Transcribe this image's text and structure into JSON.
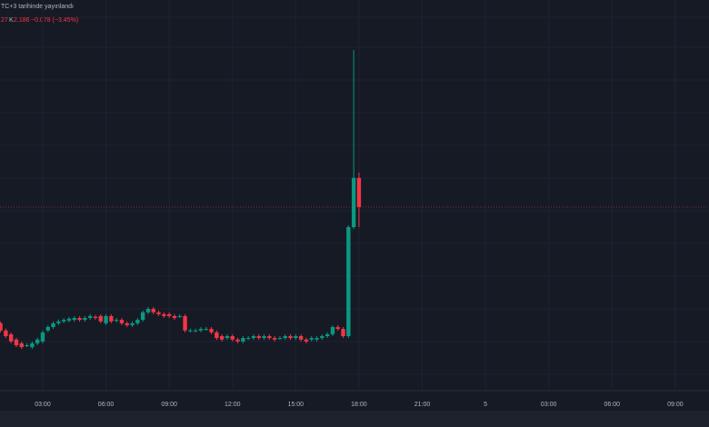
{
  "header": {
    "published": "TC+3 tarihinde yayınlandı",
    "ohlc_prefix": "27",
    "close_label": "K",
    "close_value": "2.186",
    "change": "−0.078 (−3.45%)"
  },
  "chart_data": {
    "type": "candlestick",
    "up_color": "#089981",
    "down_color": "#f23645",
    "xlim": [
      -0.1,
      134.4
    ],
    "ylim": [
      1.701,
      2.733
    ],
    "xticks": [
      {
        "value": 8,
        "label": "03:00"
      },
      {
        "value": 20,
        "label": "06:00"
      },
      {
        "value": 32,
        "label": "09:00"
      },
      {
        "value": 44,
        "label": "12:00"
      },
      {
        "value": 56,
        "label": "15:00"
      },
      {
        "value": 68,
        "label": "18:00"
      },
      {
        "value": 80,
        "label": "21:00"
      },
      {
        "value": 92,
        "label": "5"
      },
      {
        "value": 104,
        "label": "03:00"
      },
      {
        "value": 116,
        "label": "06:00"
      },
      {
        "value": 128,
        "label": "09:00"
      }
    ],
    "grid": true,
    "open": [
      1.879,
      1.86,
      1.85,
      1.836,
      1.826,
      1.821,
      1.816,
      1.826,
      1.831,
      1.86,
      1.869,
      1.879,
      1.884,
      1.886,
      1.888,
      1.893,
      1.888,
      1.893,
      1.896,
      1.898,
      1.879,
      1.898,
      1.886,
      1.888,
      1.879,
      1.874,
      1.879,
      1.888,
      1.908,
      1.917,
      1.908,
      1.903,
      1.903,
      1.898,
      1.898,
      1.898,
      1.86,
      1.86,
      1.86,
      1.864,
      1.864,
      1.855,
      1.845,
      1.84,
      1.845,
      1.836,
      1.831,
      1.84,
      1.84,
      1.845,
      1.84,
      1.845,
      1.84,
      1.84,
      1.84,
      1.845,
      1.84,
      1.845,
      1.836,
      1.836,
      1.836,
      1.84,
      1.845,
      1.85,
      1.869,
      1.864,
      1.845,
      2.133,
      2.263
    ],
    "high": [
      1.884,
      1.865,
      1.855,
      1.841,
      1.831,
      1.826,
      1.831,
      1.841,
      1.86,
      1.874,
      1.884,
      1.889,
      1.893,
      1.896,
      1.898,
      1.898,
      1.898,
      1.903,
      1.901,
      1.903,
      1.903,
      1.903,
      1.893,
      1.893,
      1.884,
      1.884,
      1.893,
      1.913,
      1.922,
      1.922,
      1.913,
      1.908,
      1.908,
      1.903,
      1.903,
      1.903,
      1.865,
      1.865,
      1.869,
      1.869,
      1.869,
      1.86,
      1.85,
      1.85,
      1.85,
      1.841,
      1.845,
      1.845,
      1.85,
      1.85,
      1.85,
      1.85,
      1.845,
      1.845,
      1.85,
      1.85,
      1.85,
      1.85,
      1.841,
      1.845,
      1.845,
      1.85,
      1.855,
      1.874,
      1.874,
      1.869,
      2.138,
      2.601,
      2.277
    ],
    "low": [
      1.855,
      1.84,
      1.826,
      1.816,
      1.811,
      1.816,
      1.811,
      1.821,
      1.826,
      1.855,
      1.864,
      1.874,
      1.879,
      1.881,
      1.883,
      1.883,
      1.883,
      1.888,
      1.888,
      1.879,
      1.874,
      1.879,
      1.881,
      1.874,
      1.869,
      1.869,
      1.874,
      1.883,
      1.903,
      1.903,
      1.898,
      1.893,
      1.893,
      1.888,
      1.893,
      1.855,
      1.855,
      1.855,
      1.855,
      1.859,
      1.85,
      1.835,
      1.831,
      1.835,
      1.831,
      1.826,
      1.826,
      1.835,
      1.835,
      1.835,
      1.835,
      1.835,
      1.831,
      1.835,
      1.835,
      1.835,
      1.835,
      1.831,
      1.826,
      1.831,
      1.831,
      1.835,
      1.84,
      1.845,
      1.859,
      1.84,
      1.84,
      2.128,
      2.133
    ],
    "close": [
      1.86,
      1.845,
      1.831,
      1.821,
      1.816,
      1.821,
      1.826,
      1.836,
      1.855,
      1.869,
      1.879,
      1.884,
      1.888,
      1.891,
      1.893,
      1.888,
      1.893,
      1.898,
      1.893,
      1.884,
      1.898,
      1.884,
      1.888,
      1.879,
      1.874,
      1.879,
      1.888,
      1.908,
      1.917,
      1.908,
      1.903,
      1.898,
      1.898,
      1.893,
      1.898,
      1.86,
      1.86,
      1.86,
      1.864,
      1.864,
      1.855,
      1.84,
      1.836,
      1.845,
      1.836,
      1.831,
      1.84,
      1.84,
      1.845,
      1.84,
      1.845,
      1.84,
      1.836,
      1.84,
      1.845,
      1.84,
      1.845,
      1.836,
      1.831,
      1.84,
      1.84,
      1.845,
      1.85,
      1.869,
      1.864,
      1.845,
      2.133,
      2.263,
      2.186
    ]
  }
}
